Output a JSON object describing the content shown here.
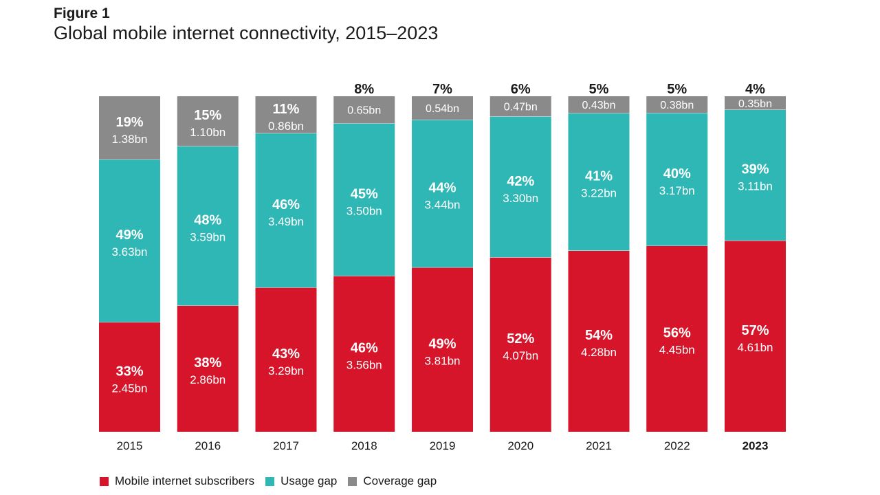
{
  "figure_label": "Figure 1",
  "title": "Global mobile internet connectivity, 2015–2023",
  "colors": {
    "subscribers": "#d7152a",
    "usage_gap": "#2fb7b5",
    "coverage_gap": "#8a8a8a"
  },
  "legend": [
    {
      "name": "Mobile internet subscribers",
      "color": "#d7152a"
    },
    {
      "name": "Usage gap",
      "color": "#2fb7b5"
    },
    {
      "name": "Coverage gap",
      "color": "#8a8a8a"
    }
  ],
  "chart_data": {
    "type": "bar",
    "stacked": true,
    "categories": [
      "2015",
      "2016",
      "2017",
      "2018",
      "2019",
      "2020",
      "2021",
      "2022",
      "2023"
    ],
    "highlight_category": "2023",
    "ylim": [
      0,
      100
    ],
    "series": [
      {
        "name": "Mobile internet subscribers",
        "percent": [
          33,
          38,
          43,
          46,
          49,
          52,
          54,
          56,
          57
        ],
        "percent_labels": [
          "33%",
          "38%",
          "43%",
          "46%",
          "49%",
          "52%",
          "54%",
          "56%",
          "57%"
        ],
        "value_labels": [
          "2.45bn",
          "2.86bn",
          "3.29bn",
          "3.56bn",
          "3.81bn",
          "4.07bn",
          "4.28bn",
          "4.45bn",
          "4.61bn"
        ]
      },
      {
        "name": "Usage gap",
        "percent": [
          49,
          48,
          46,
          45,
          44,
          42,
          41,
          40,
          39
        ],
        "percent_labels": [
          "49%",
          "48%",
          "46%",
          "45%",
          "44%",
          "42%",
          "41%",
          "40%",
          "39%"
        ],
        "value_labels": [
          "3.63bn",
          "3.59bn",
          "3.49bn",
          "3.50bn",
          "3.44bn",
          "3.30bn",
          "3.22bn",
          "3.17bn",
          "3.11bn"
        ]
      },
      {
        "name": "Coverage gap",
        "percent": [
          19,
          15,
          11,
          8,
          7,
          6,
          5,
          5,
          4
        ],
        "percent_labels": [
          "19%",
          "15%",
          "11%",
          "8%",
          "7%",
          "6%",
          "5%",
          "5%",
          "4%"
        ],
        "value_labels": [
          "1.38bn",
          "1.10bn",
          "0.86bn",
          "0.65bn",
          "0.54bn",
          "0.47bn",
          "0.43bn",
          "0.38bn",
          "0.35bn"
        ]
      }
    ],
    "legend_position": "bottom-left",
    "grid": false
  }
}
